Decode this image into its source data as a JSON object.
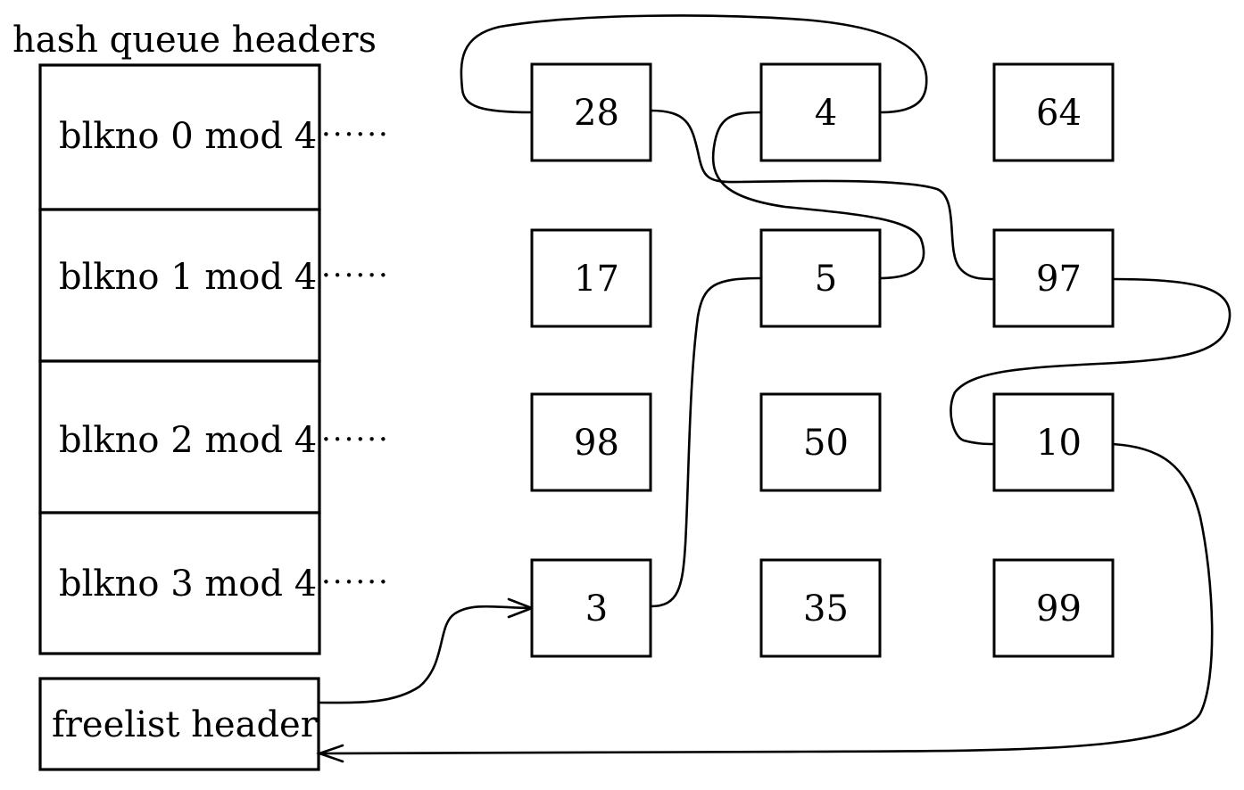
{
  "title": "hash queue headers",
  "hash_headers": [
    {
      "label": "blkno 0 mod 4"
    },
    {
      "label": "blkno 1 mod 4"
    },
    {
      "label": "blkno 2 mod 4"
    },
    {
      "label": "blkno 3 mod 4"
    }
  ],
  "hash_leader_dots": "······",
  "freelist_header": {
    "label": "freelist header"
  },
  "buffers": [
    {
      "id": "28"
    },
    {
      "id": "4"
    },
    {
      "id": "64"
    },
    {
      "id": "17"
    },
    {
      "id": "5"
    },
    {
      "id": "97"
    },
    {
      "id": "98"
    },
    {
      "id": "50"
    },
    {
      "id": "10"
    },
    {
      "id": "3"
    },
    {
      "id": "35"
    },
    {
      "id": "99"
    }
  ]
}
